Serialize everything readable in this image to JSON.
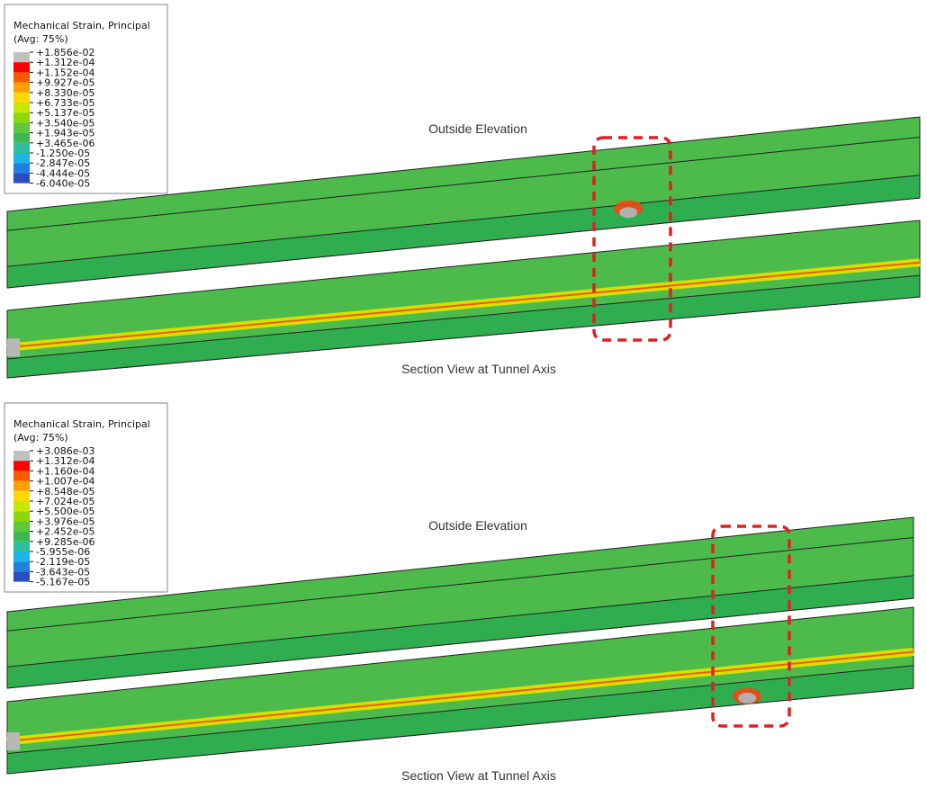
{
  "panels": [
    {
      "legend": {
        "title": "Mechanical Strain, Principal",
        "subtitle": "(Avg: 75%)",
        "labels": [
          "+1.856e-02",
          "+1.312e-04",
          "+1.152e-04",
          "+9.927e-05",
          "+8.330e-05",
          "+6.733e-05",
          "+5.137e-05",
          "+3.540e-05",
          "+1.943e-05",
          "+3.465e-06",
          "-1.250e-05",
          "-2.847e-05",
          "-4.444e-05",
          "-6.040e-05"
        ],
        "colors": [
          "#c0c0c0",
          "#ff0000",
          "#ff5a00",
          "#ffa000",
          "#ffd800",
          "#c8e600",
          "#8ed800",
          "#5cc83a",
          "#3cb850",
          "#2ebe9c",
          "#1cb4e6",
          "#2080e0",
          "#2a4ec0"
        ]
      },
      "elevation_label": "Outside Elevation",
      "section_label": "Section View at Tunnel Axis"
    },
    {
      "legend": {
        "title": "Mechanical Strain, Principal",
        "subtitle": "(Avg: 75%)",
        "labels": [
          "+3.086e-03",
          "+1.312e-04",
          "+1.160e-04",
          "+1.007e-04",
          "+8.548e-05",
          "+7.024e-05",
          "+5.500e-05",
          "+3.976e-05",
          "+2.452e-05",
          "+9.285e-06",
          "-5.955e-06",
          "-2.119e-05",
          "-3.643e-05",
          "-5.167e-05"
        ],
        "colors": [
          "#c0c0c0",
          "#ff0000",
          "#ff5a00",
          "#ffa000",
          "#ffd800",
          "#c8e600",
          "#8ed800",
          "#5cc83a",
          "#3cb850",
          "#2ebe9c",
          "#1cb4e6",
          "#2080e0",
          "#2a4ec0"
        ]
      },
      "elevation_label": "Outside Elevation",
      "section_label": "Section View at Tunnel Axis"
    }
  ]
}
